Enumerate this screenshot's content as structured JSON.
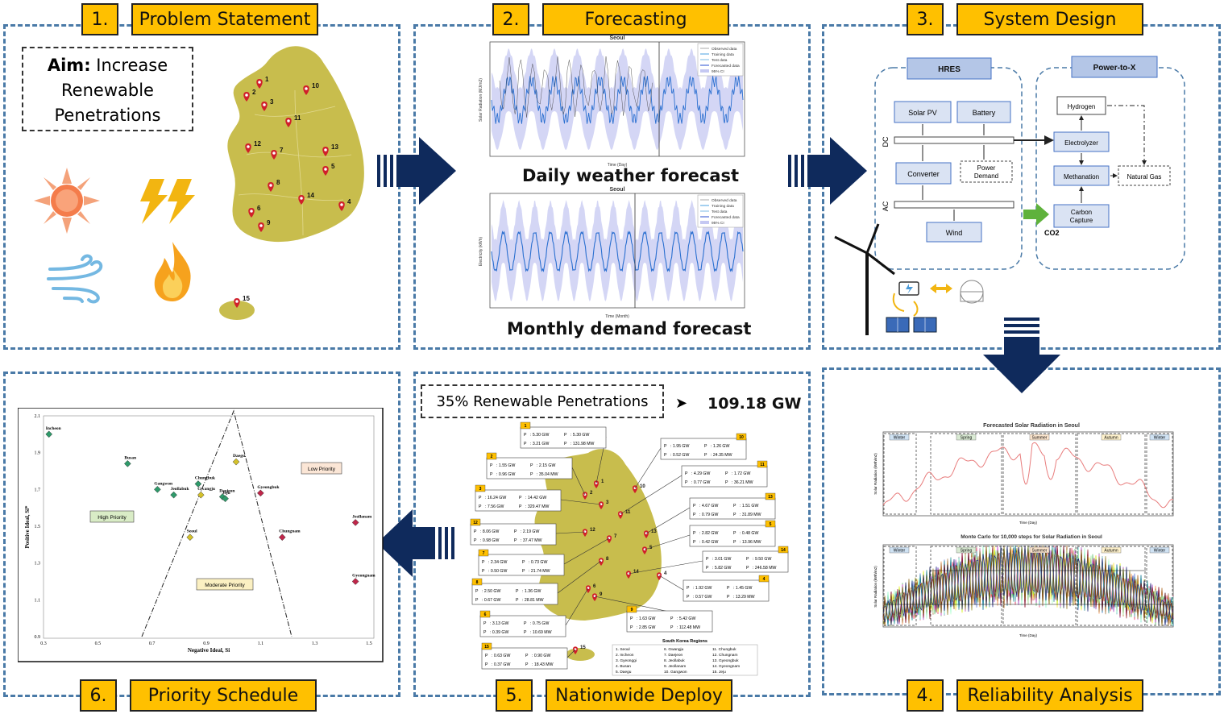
{
  "panels": [
    {
      "number": "1.",
      "title": "Problem Statement"
    },
    {
      "number": "2.",
      "title": "Forecasting"
    },
    {
      "number": "3.",
      "title": "System Design"
    },
    {
      "number": "4.",
      "title": "Reliability Analysis"
    },
    {
      "number": "5.",
      "title": "Nationwide Deploy"
    },
    {
      "number": "6.",
      "title": "Priority Schedule"
    }
  ],
  "aim": {
    "label": "Aim:",
    "line1": " Increase",
    "line2": "Renewable",
    "line3": "Penetrations"
  },
  "map_pins": [
    "1",
    "2",
    "3",
    "4",
    "5",
    "6",
    "7",
    "8",
    "9",
    "10",
    "11",
    "12",
    "13",
    "14",
    "15"
  ],
  "forecast": {
    "daily_caption": "Daily weather forecast",
    "monthly_caption": "Monthly demand forecast",
    "chart_title": "Seoul",
    "daily_xlabel": "Time (Day)",
    "daily_ylabel": "Solar Radiation (MJ/m2)",
    "monthly_xlabel": "Time (Month)",
    "monthly_ylabel": "Electricity (kWh)",
    "legend": [
      "Observed data",
      "Training data",
      "Test data",
      "Forecasted data",
      "95% CI"
    ]
  },
  "system": {
    "hres": "HRES",
    "ptx": "Power-to-X",
    "solar_pv": "Solar PV",
    "battery": "Battery",
    "converter": "Converter",
    "power": "Power",
    "demand": "Demand",
    "wind": "Wind",
    "dc": "DC",
    "ac": "AC",
    "hydrogen": "Hydrogen",
    "electrolyzer": "Electrolyzer",
    "methanation": "Methanation",
    "natural_gas": "Natural Gas",
    "carbon": "Carbon",
    "capture": "Capture",
    "co2": "CO2"
  },
  "reliability": {
    "title1": "Forecasted Solar Radiation in Seoul",
    "title2": "Monte Carlo for 10,000 steps for Solar Radiation in Seoul",
    "seasons": [
      "Winter",
      "Spring",
      "Summer",
      "Autumn",
      "Winter"
    ],
    "xlabel": "Time (Day)",
    "ylabel": "Solar Radiation (kWh/m2)"
  },
  "deploy": {
    "penetration": "35% Renewable Penetrations",
    "total": "109.18 GW",
    "regions_title": "South Korea Regions",
    "regions": [
      "1. Seoul",
      "2. Incheon",
      "3. Gyeonggi",
      "4. Busan",
      "5. Daegu",
      "6. Gwangju",
      "7. Daejeon",
      "8. Jeollabuk",
      "9. Jeollanam",
      "10. Gangwon",
      "11. Chungbuk",
      "12. Chungnam",
      "13. Gyeongbuk",
      "14. Gyeongnam",
      "15. Jeju"
    ],
    "region_boxes": [
      {
        "id": "1",
        "solar": "5.30 GW",
        "wind": "5.30 GW",
        "ptg": "3.21 GW",
        "conv": "131.98 MW"
      },
      {
        "id": "2",
        "solar": "1.55 GW",
        "wind": "2.15 GW",
        "ptg": "0.96 GW",
        "conv": "35.04 MW"
      },
      {
        "id": "3",
        "solar": "16.24 GW",
        "wind": "14.42 GW",
        "ptg": "7.56 GW",
        "conv": "329.47 MW"
      },
      {
        "id": "12",
        "solar": "8.06 GW",
        "wind": "2.19 GW",
        "ptg": "0.98 GW",
        "conv": "37.47 MW"
      },
      {
        "id": "7",
        "solar": "2.34 GW",
        "wind": "0.73 GW",
        "ptg": "0.50 GW",
        "conv": "21.74 MW"
      },
      {
        "id": "8",
        "solar": "2.50 GW",
        "wind": "1.36 GW",
        "ptg": "0.67 GW",
        "conv": "28.81 MW"
      },
      {
        "id": "6",
        "solar": "3.13 GW",
        "wind": "0.75 GW",
        "ptg": "0.39 GW",
        "conv": "10.69 MW"
      },
      {
        "id": "15",
        "solar": "0.63 GW",
        "wind": "0.90 GW",
        "ptg": "0.37 GW",
        "conv": "18.43 MW"
      },
      {
        "id": "10",
        "solar": "1.95 GW",
        "wind": "1.26 GW",
        "ptg": "0.52 GW",
        "conv": "24.35 MW"
      },
      {
        "id": "11",
        "solar": "4.29 GW",
        "wind": "1.72 GW",
        "ptg": "0.77 GW",
        "conv": "36.21 MW"
      },
      {
        "id": "13",
        "solar": "4.67 GW",
        "wind": "1.51 GW",
        "ptg": "0.79 GW",
        "conv": "31.89 MW"
      },
      {
        "id": "5",
        "solar": "2.82 GW",
        "wind": "0.48 GW",
        "ptg": "0.42 GW",
        "conv": "13.96 MW"
      },
      {
        "id": "14",
        "solar": "3.01 GW",
        "wind": "9.50 GW",
        "ptg": "5.82 GW",
        "conv": "246.58 MW"
      },
      {
        "id": "4",
        "solar": "1.92 GW",
        "wind": "1.45 GW",
        "ptg": "0.57 GW",
        "conv": "13.29 MW"
      },
      {
        "id": "9",
        "solar": "1.63 GW",
        "wind": "5.42 GW",
        "ptg": "2.85 GW",
        "conv": "112.48 MW"
      }
    ]
  },
  "priority": {
    "xlabel": "Negative Ideal, Si",
    "ylabel": "Positive Ideal, Si*",
    "high": "High Priority",
    "moderate": "Moderate Priority",
    "low": "Low Priority",
    "x_ticks": [
      "0.3",
      "0.5",
      "0.7",
      "0.9",
      "1.1",
      "1.3",
      "1.5"
    ],
    "y_ticks": [
      "2.1",
      "1.9",
      "1.7",
      "1.5",
      "1.3",
      "1.1",
      "0.9"
    ],
    "points": [
      {
        "name": "Incheon",
        "x": 0.32,
        "y": 2.0,
        "color": "#2e9a6a"
      },
      {
        "name": "Busan",
        "x": 0.61,
        "y": 1.84,
        "color": "#2e9a6a"
      },
      {
        "name": "Gangwon",
        "x": 0.72,
        "y": 1.7,
        "color": "#2e9a6a"
      },
      {
        "name": "Jeollabuk",
        "x": 0.78,
        "y": 1.67,
        "color": "#2e9a6a"
      },
      {
        "name": "Chungbuk",
        "x": 0.87,
        "y": 1.73,
        "color": "#2e9a6a"
      },
      {
        "name": "Gwangju",
        "x": 0.88,
        "y": 1.67,
        "color": "#d4c12a"
      },
      {
        "name": "Daejeon",
        "x": 0.96,
        "y": 1.66,
        "color": "#2e9a6a"
      },
      {
        "name": "Jeju",
        "x": 0.97,
        "y": 1.65,
        "color": "#2e9a6a"
      },
      {
        "name": "Daegu",
        "x": 1.01,
        "y": 1.85,
        "color": "#d4c12a"
      },
      {
        "name": "Gyeongbuk",
        "x": 1.1,
        "y": 1.68,
        "color": "#c0264a"
      },
      {
        "name": "Seoul",
        "x": 0.84,
        "y": 1.44,
        "color": "#d4c12a"
      },
      {
        "name": "Chungnam",
        "x": 1.18,
        "y": 1.44,
        "color": "#c0264a"
      },
      {
        "name": "Jeollanam",
        "x": 1.45,
        "y": 1.52,
        "color": "#c0264a"
      },
      {
        "name": "Gyeongnam",
        "x": 1.45,
        "y": 1.2,
        "color": "#c0264a"
      }
    ]
  },
  "colors": {
    "panel_border": "#4a7aa7",
    "title_fill": "#ffc000",
    "arrow": "#0f2a5c",
    "map": "#c8bd4d",
    "pin": "#d01f2a"
  }
}
